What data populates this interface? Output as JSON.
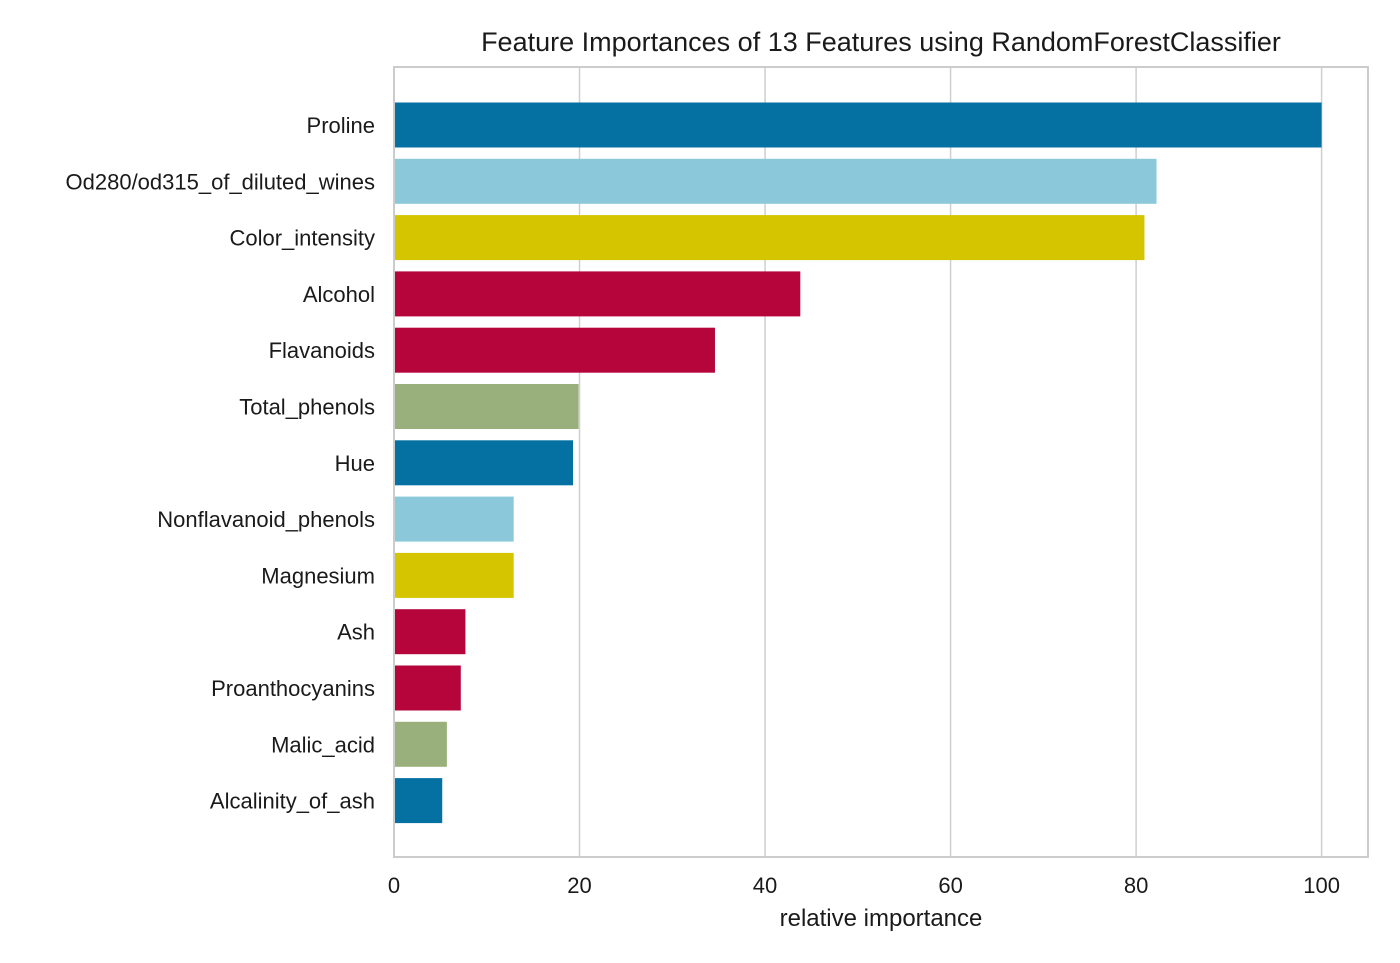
{
  "chart_data": {
    "type": "bar",
    "orientation": "horizontal",
    "title": "Feature Importances of 13 Features using RandomForestClassifier",
    "xlabel": "relative importance",
    "ylabel": "",
    "xlim": [
      0,
      105
    ],
    "xticks": [
      "0",
      "20",
      "40",
      "60",
      "80",
      "100"
    ],
    "grid": true,
    "categories": [
      "Proline",
      "Od280/od315_of_diluted_wines",
      "Color_intensity",
      "Alcohol",
      "Flavanoids",
      "Total_phenols",
      "Hue",
      "Nonflavanoid_phenols",
      "Magnesium",
      "Ash",
      "Proanthocyanins",
      "Malic_acid",
      "Alcalinity_of_ash"
    ],
    "values": [
      100,
      82.2,
      80.9,
      43.8,
      34.6,
      19.9,
      19.3,
      12.9,
      12.9,
      7.7,
      7.2,
      5.7,
      5.2
    ],
    "colors": [
      "#0571a3",
      "#8ac8da",
      "#d4c500",
      "#b5053a",
      "#b5053a",
      "#9ab07c",
      "#0571a3",
      "#8ac8da",
      "#d4c500",
      "#b5053a",
      "#b5053a",
      "#9ab07c",
      "#0571a3"
    ]
  }
}
